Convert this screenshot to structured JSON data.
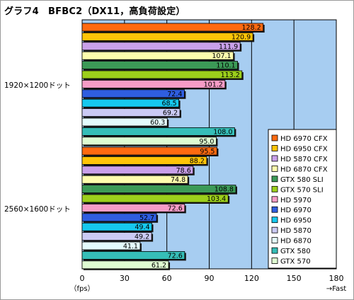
{
  "title": "グラフ4　BFBC2（DX11，高負荷設定）",
  "chart_data": {
    "type": "bar",
    "orientation": "horizontal",
    "title": "グラフ4　BFBC2（DX11，高負荷設定）",
    "x_unit_label": "（fps）",
    "x_direction_label": "→Fast",
    "xlim": [
      0,
      180
    ],
    "x_ticks": [
      0,
      30,
      60,
      90,
      120,
      150,
      180
    ],
    "grid": true,
    "legend_position": "right",
    "colors": {
      "plot_background": "#a7cdf1",
      "gridline": "#000000"
    },
    "series": [
      {
        "name": "HD 6970 CFX",
        "color": "#ff6a10"
      },
      {
        "name": "HD 6950 CFX",
        "color": "#ffc408"
      },
      {
        "name": "HD 5870 CFX",
        "color": "#c9a0ea"
      },
      {
        "name": "HD 6870 CFX",
        "color": "#fefdae"
      },
      {
        "name": "GTX 580 SLI",
        "color": "#3c9a57"
      },
      {
        "name": "GTX 570 SLI",
        "color": "#9ccf1b"
      },
      {
        "name": "HD 5970",
        "color": "#f79cc6"
      },
      {
        "name": "HD 6970",
        "color": "#2f5ee0"
      },
      {
        "name": "HD 6950",
        "color": "#16c8ef"
      },
      {
        "name": "HD 5870",
        "color": "#cbcaf4"
      },
      {
        "name": "HD 6870",
        "color": "#e4fcfd"
      },
      {
        "name": "GTX 580",
        "color": "#36beb8"
      },
      {
        "name": "GTX 570",
        "color": "#dffcd2"
      }
    ],
    "groups": [
      {
        "label": "1920×1200ドット",
        "values": [
          128.2,
          120.9,
          111.9,
          107.1,
          110.1,
          113.2,
          101.2,
          72.4,
          68.5,
          69.2,
          60.3,
          108.0,
          95.0
        ],
        "value_labels": [
          "128.2",
          "120.9",
          "111.9",
          "107.1",
          "110.1",
          "113.2",
          "101.2",
          "72.4",
          "68.5",
          "69.2",
          "60.3",
          "108.0",
          "95.0"
        ]
      },
      {
        "label": "2560×1600ドット",
        "values": [
          95.5,
          88.2,
          78.6,
          74.8,
          108.8,
          103.4,
          72.6,
          52.7,
          49.4,
          49.2,
          41.1,
          72.6,
          61.2
        ],
        "value_labels": [
          "95.5",
          "88.2",
          "78.6",
          "74.8",
          "108.8",
          "103.4",
          "72.6",
          "52.7",
          "49.4",
          "49.2",
          "41.1",
          "72.6",
          "61.2"
        ]
      }
    ]
  }
}
